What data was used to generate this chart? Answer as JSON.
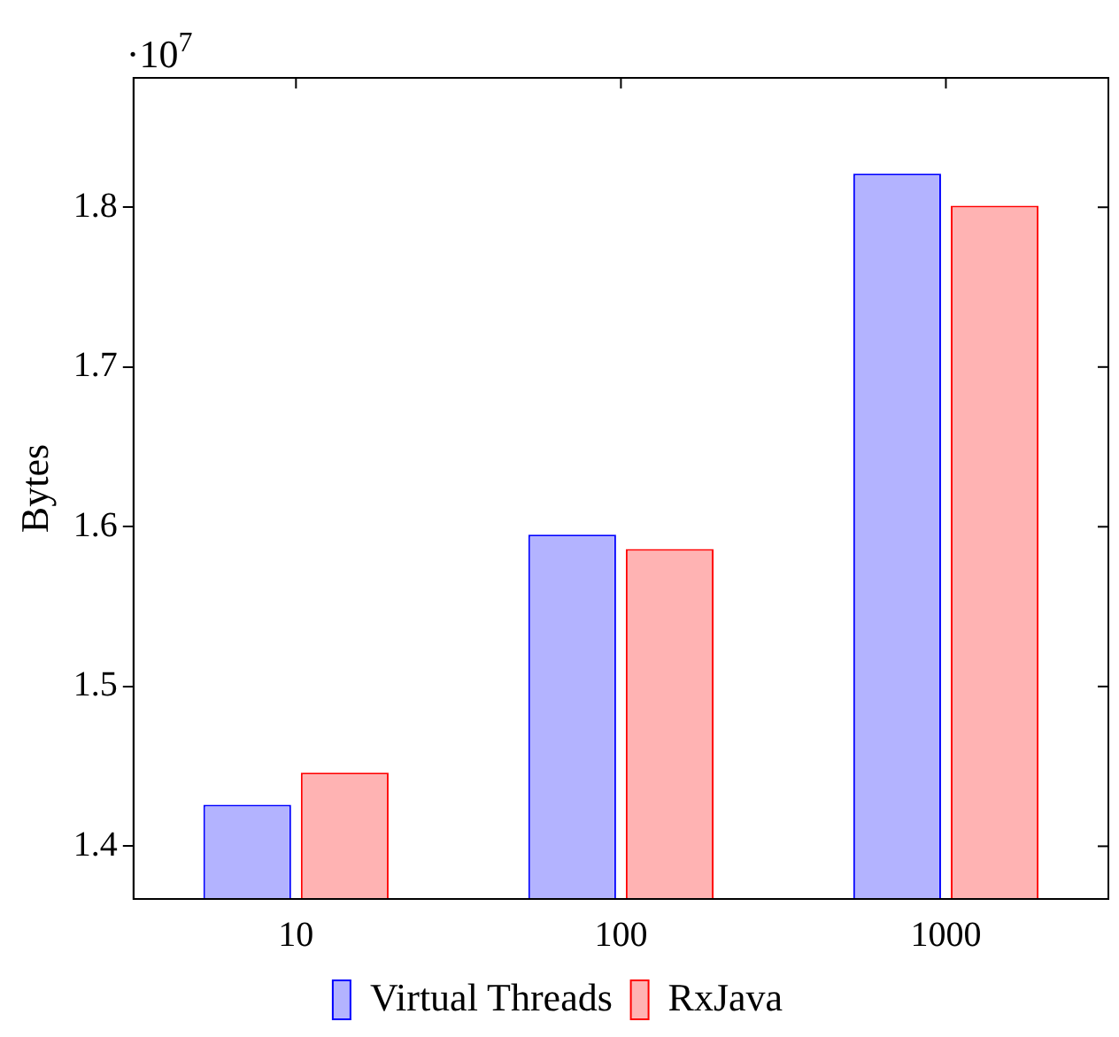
{
  "chart_data": {
    "type": "bar",
    "ylabel": "Bytes",
    "categories": [
      "10",
      "100",
      "1000"
    ],
    "series": [
      {
        "name": "Virtual Threads",
        "color": "#b3b3ff",
        "values": [
          1.426,
          1.595,
          1.821
        ]
      },
      {
        "name": "RxJava",
        "color": "#ffb3b3",
        "values": [
          1.446,
          1.586,
          1.801
        ]
      }
    ],
    "ylim": [
      1.367,
      1.881
    ],
    "yticks": [
      1.4,
      1.5,
      1.6,
      1.7,
      1.8
    ],
    "grid": false,
    "legend": "bottom",
    "annotations": [
      "·10$^{7}$"
    ]
  }
}
